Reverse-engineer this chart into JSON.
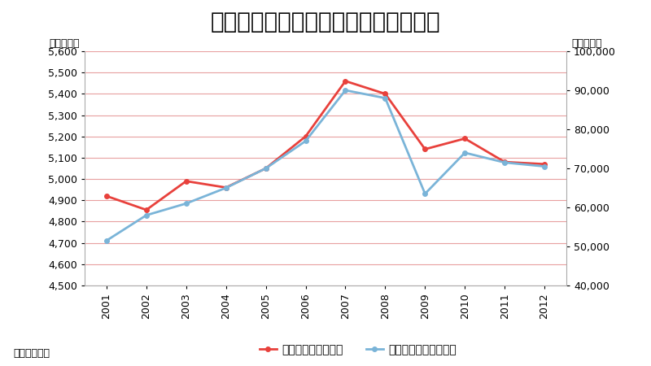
{
  "title": "市内総生産と日本の輸出額との相関性",
  "years": [
    2001,
    2002,
    2003,
    2004,
    2005,
    2006,
    2007,
    2008,
    2009,
    2010,
    2011,
    2012
  ],
  "gdp": [
    4920,
    4855,
    4990,
    4960,
    5050,
    5200,
    5460,
    5400,
    5140,
    5190,
    5080,
    5070
  ],
  "exports": [
    51500,
    58000,
    61000,
    65000,
    70000,
    77000,
    90000,
    88000,
    63500,
    74000,
    71500,
    70500
  ],
  "gdp_color": "#e8413c",
  "exports_color": "#7ab4d8",
  "left_ylabel": "（十億円）",
  "right_ylabel": "（十億円）",
  "left_ylim": [
    4500,
    5600
  ],
  "right_ylim": [
    40000,
    100000
  ],
  "left_yticks": [
    4500,
    4600,
    4700,
    4800,
    4900,
    5000,
    5100,
    5200,
    5300,
    5400,
    5500,
    5600
  ],
  "right_yticks": [
    40000,
    50000,
    60000,
    70000,
    80000,
    90000,
    100000
  ],
  "legend_gdp": "市内総生産（左軸）",
  "legend_exports": "日本の輸出額（右軸）",
  "source_text": "典拠：内閣府",
  "background_color": "#ffffff",
  "plot_bg_color": "#ffffff",
  "grid_color": "#e8a0a0",
  "title_fontsize": 20,
  "label_fontsize": 9,
  "tick_fontsize": 9,
  "legend_fontsize": 10,
  "source_fontsize": 9
}
